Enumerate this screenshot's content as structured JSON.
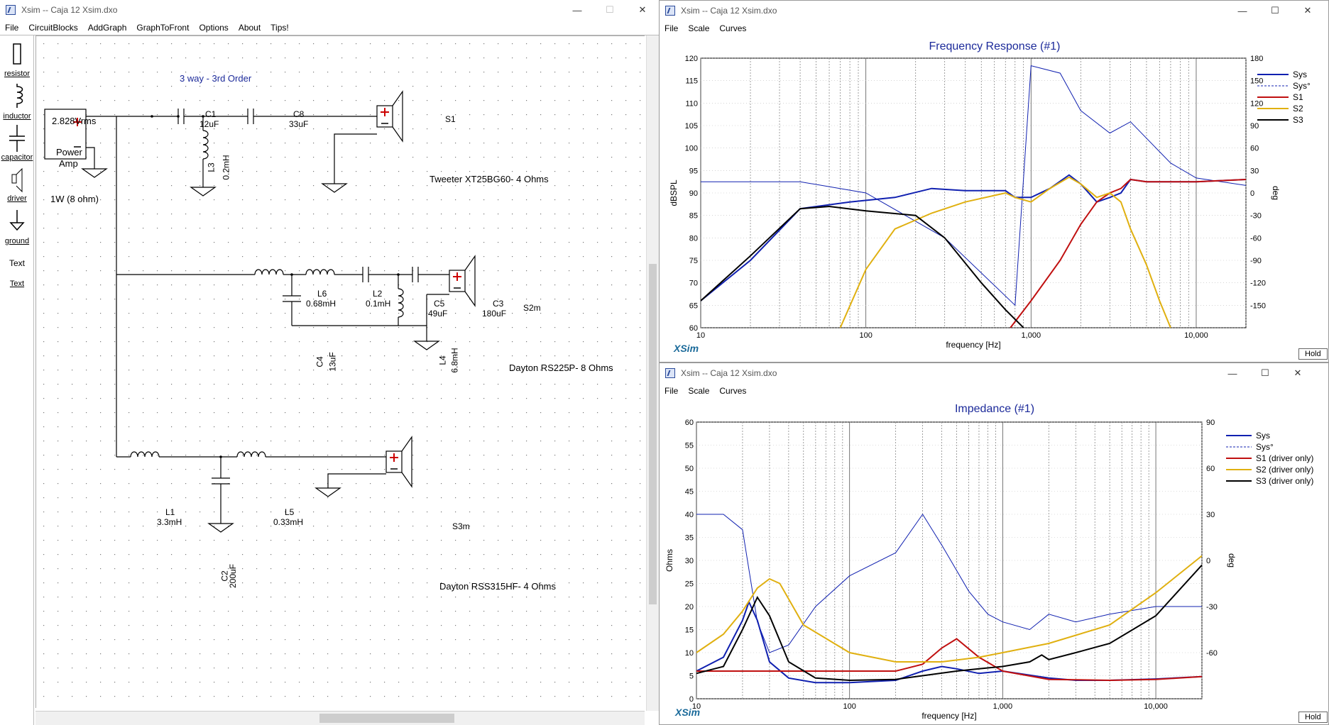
{
  "schematic_window": {
    "title": "Xsim -- Caja 12 Xsim.dxo",
    "menu": [
      "File",
      "CircuitBlocks",
      "AddGraph",
      "GraphToFront",
      "Options",
      "About",
      "Tips!"
    ],
    "toolbox": [
      "resistor",
      "inductor",
      "capacitor",
      "driver",
      "ground",
      "Text",
      "Text"
    ],
    "title_label": "3 way - 3rd Order",
    "source": {
      "voltage": "2.828Vrms",
      "name_line1": "Power",
      "name_line2": "Amp",
      "note": "1W (8 ohm)"
    },
    "components": {
      "C1": {
        "name": "C1",
        "value": "12uF"
      },
      "C8": {
        "name": "C8",
        "value": "33uF"
      },
      "L3": {
        "name": "L3",
        "value": "0.2mH"
      },
      "L6": {
        "name": "L6",
        "value": "0.68mH"
      },
      "L2": {
        "name": "L2",
        "value": "0.1mH"
      },
      "C5": {
        "name": "C5",
        "value": "49uF"
      },
      "C3": {
        "name": "C3",
        "value": "180uF"
      },
      "C4": {
        "name": "C4",
        "value": "13uF"
      },
      "L4": {
        "name": "L4",
        "value": "6.8mH"
      },
      "L1": {
        "name": "L1",
        "value": "3.3mH"
      },
      "L5": {
        "name": "L5",
        "value": "0.33mH"
      },
      "C2": {
        "name": "C2",
        "value": "200uF"
      }
    },
    "drivers": {
      "S1": {
        "name": "S1",
        "label": "Tweeter XT25BG60- 4 Ohms"
      },
      "S2": {
        "name": "S2m",
        "label": "Dayton RS225P- 8 Ohms"
      },
      "S3": {
        "name": "S3m",
        "label": "Dayton RSS315HF- 4 Ohms"
      }
    }
  },
  "freq_window": {
    "title": "Xsim -- Caja 12 Xsim.dxo",
    "menu": [
      "File",
      "Scale",
      "Curves"
    ],
    "graph_title": "Frequency Response (#1)",
    "hold": "Hold",
    "logo": "XSim"
  },
  "imp_window": {
    "title": "Xsim -- Caja 12 Xsim.dxo",
    "menu": [
      "File",
      "Scale",
      "Curves"
    ],
    "graph_title": "Impedance (#1)",
    "hold": "Hold",
    "logo": "XSim"
  },
  "chart_data": [
    {
      "type": "line",
      "title": "Frequency Response (#1)",
      "xlabel": "frequency [Hz]",
      "ylabel": "dBSPL",
      "y2label": "deg",
      "xscale": "log",
      "xlim": [
        10,
        20000
      ],
      "ylim": [
        60,
        120
      ],
      "y2lim": [
        -180,
        180
      ],
      "xticks": [
        "10",
        "100",
        "1,000",
        "10,000"
      ],
      "yticks": [
        "60",
        "65",
        "70",
        "75",
        "80",
        "85",
        "90",
        "95",
        "100",
        "105",
        "110",
        "115",
        "120"
      ],
      "y2ticks": [
        "-150",
        "-120",
        "-90",
        "-60",
        "-30",
        "0",
        "30",
        "60",
        "90",
        "120",
        "150",
        "180"
      ],
      "legend_position": "right",
      "series": [
        {
          "name": "Sys",
          "color": "#1020b0",
          "style": "solid",
          "x": [
            10,
            20,
            40,
            80,
            150,
            250,
            400,
            700,
            800,
            1000,
            1300,
            1700,
            2000,
            2500,
            3000,
            3500,
            4000,
            5000,
            7000,
            10000,
            20000
          ],
          "y": [
            66,
            75,
            86.5,
            88,
            89,
            91,
            90.5,
            90.5,
            89,
            89,
            91,
            94,
            92,
            88,
            89,
            90,
            93,
            92.5,
            92.5,
            92.5,
            93
          ]
        },
        {
          "name": "Sys°",
          "color": "#1020b0",
          "style": "dashed",
          "x": [
            10,
            40,
            100,
            300,
            800,
            1000,
            1500,
            2000,
            3000,
            4000,
            7000,
            10000,
            20000
          ],
          "y": [
            15,
            15,
            0,
            -60,
            -150,
            170,
            160,
            110,
            80,
            95,
            40,
            20,
            10
          ]
        },
        {
          "name": "S1",
          "color": "#c01010",
          "style": "solid",
          "x": [
            750,
            1000,
            1500,
            2000,
            2500,
            3000,
            3500,
            4000,
            5000,
            7000,
            10000,
            20000
          ],
          "y": [
            60,
            66,
            75,
            83,
            88,
            90,
            91,
            93,
            92.5,
            92.5,
            92.5,
            93
          ]
        },
        {
          "name": "S2",
          "color": "#e0b010",
          "style": "solid",
          "x": [
            70,
            100,
            150,
            250,
            400,
            700,
            800,
            1000,
            1300,
            1700,
            2000,
            2500,
            3000,
            3500,
            4000,
            5000,
            6000,
            7000
          ],
          "y": [
            60,
            73,
            82,
            85.5,
            88,
            90,
            89,
            88,
            91,
            93.5,
            92,
            89,
            90,
            88,
            82,
            74,
            66,
            60
          ]
        },
        {
          "name": "S3",
          "color": "#000000",
          "style": "solid",
          "x": [
            10,
            20,
            40,
            60,
            100,
            200,
            300,
            500,
            700,
            900
          ],
          "y": [
            66,
            76,
            86.5,
            87,
            86,
            85,
            80,
            70,
            64,
            60
          ]
        }
      ]
    },
    {
      "type": "line",
      "title": "Impedance (#1)",
      "xlabel": "frequency [Hz]",
      "ylabel": "Ohms",
      "y2label": "deg",
      "xscale": "log",
      "xlim": [
        10,
        20000
      ],
      "ylim": [
        0,
        60
      ],
      "y2lim": [
        -90,
        90
      ],
      "xticks": [
        "10",
        "100",
        "1,000",
        "10,000"
      ],
      "yticks": [
        "0",
        "5",
        "10",
        "15",
        "20",
        "25",
        "30",
        "35",
        "40",
        "45",
        "50",
        "55",
        "60"
      ],
      "y2ticks": [
        "-60",
        "-30",
        "0",
        "30",
        "60",
        "90"
      ],
      "legend_position": "top-right",
      "series": [
        {
          "name": "Sys",
          "color": "#1020b0",
          "style": "solid",
          "x": [
            10,
            15,
            20,
            22,
            25,
            30,
            40,
            60,
            100,
            200,
            300,
            400,
            500,
            700,
            1000,
            2000,
            3000,
            5000,
            10000,
            20000
          ],
          "y": [
            6,
            9,
            17,
            21,
            17,
            8,
            4.5,
            3.5,
            3.5,
            4,
            6,
            7,
            6.5,
            5.5,
            6,
            4.5,
            4,
            4,
            4.3,
            4.8
          ]
        },
        {
          "name": "Sys°",
          "color": "#1020b0",
          "style": "dashed",
          "x": [
            10,
            15,
            20,
            25,
            30,
            40,
            60,
            100,
            200,
            300,
            400,
            600,
            800,
            1000,
            1500,
            2000,
            3000,
            5000,
            10000,
            20000
          ],
          "y": [
            30,
            30,
            20,
            -40,
            -60,
            -55,
            -30,
            -10,
            5,
            30,
            10,
            -20,
            -35,
            -40,
            -45,
            -35,
            -40,
            -35,
            -30,
            -30
          ]
        },
        {
          "name": "S1 (driver only)",
          "color": "#c01010",
          "style": "solid",
          "x": [
            10,
            200,
            300,
            400,
            500,
            700,
            1000,
            2000,
            5000,
            10000,
            20000
          ],
          "y": [
            6,
            6,
            7.5,
            11,
            13,
            9,
            6,
            4.2,
            4,
            4.2,
            4.8
          ]
        },
        {
          "name": "S2 (driver only)",
          "color": "#e0b010",
          "style": "solid",
          "x": [
            10,
            15,
            20,
            25,
            30,
            35,
            50,
            100,
            200,
            400,
            700,
            1000,
            2000,
            5000,
            10000,
            20000
          ],
          "y": [
            10,
            14,
            19,
            24,
            26,
            25,
            16,
            10,
            8,
            8,
            9,
            10,
            12,
            16,
            23,
            31
          ]
        },
        {
          "name": "S3 (driver only)",
          "color": "#000000",
          "style": "solid",
          "x": [
            10,
            15,
            20,
            25,
            30,
            40,
            60,
            100,
            200,
            300,
            500,
            700,
            1000,
            1500,
            1800,
            2000,
            3000,
            5000,
            10000,
            20000
          ],
          "y": [
            5.5,
            7,
            15,
            22,
            18,
            8,
            4.5,
            4,
            4.2,
            5,
            6,
            6.5,
            7,
            8,
            9.5,
            8.5,
            10,
            12,
            18,
            29
          ]
        }
      ]
    }
  ]
}
